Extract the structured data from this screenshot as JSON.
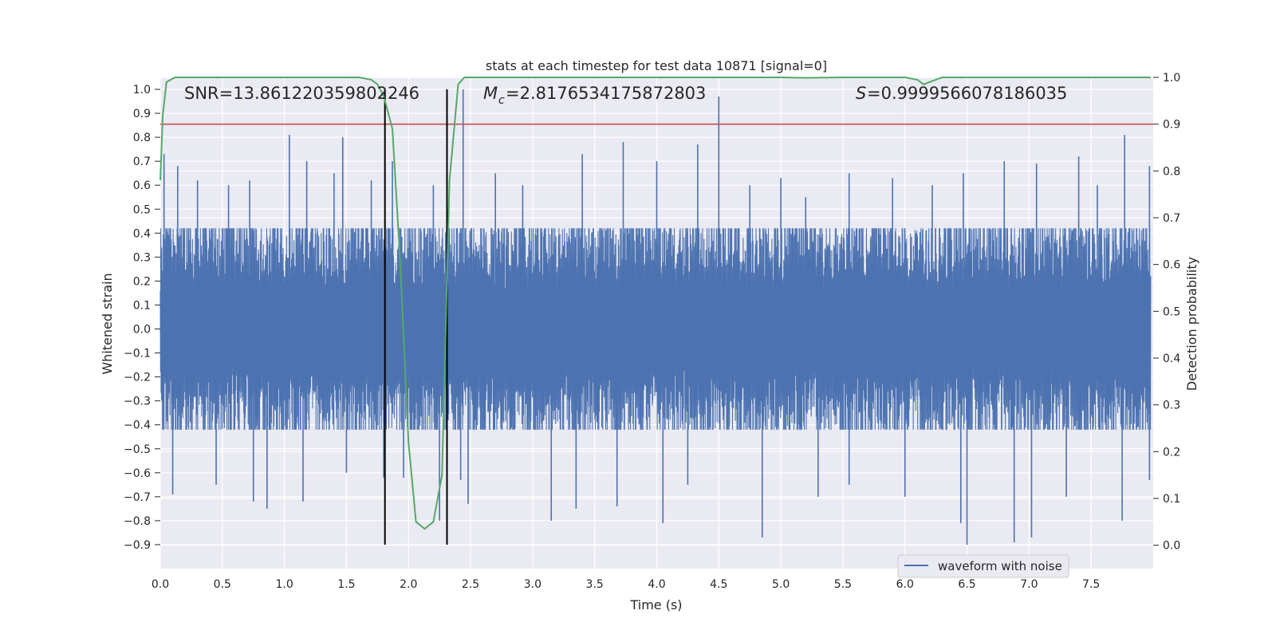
{
  "chart_data": {
    "type": "line",
    "title": "stats at each timestep for test data 10871 [signal=0]",
    "xlabel": "Time (s)",
    "ylabel_left": "Whitened strain",
    "ylabel_right": "Detection probability",
    "xlim": [
      0.0,
      8.0
    ],
    "ylim_left": [
      -1.0,
      1.05
    ],
    "ylim_right": [
      -0.05,
      1.0
    ],
    "x_ticks": [
      0.0,
      0.5,
      1.0,
      1.5,
      2.0,
      2.5,
      3.0,
      3.5,
      4.0,
      4.5,
      5.0,
      5.5,
      6.0,
      6.5,
      7.0,
      7.5
    ],
    "y_ticks_left": [
      1.0,
      0.9,
      0.8,
      0.7,
      0.6,
      0.5,
      0.4,
      0.3,
      0.2,
      0.1,
      0.0,
      -0.1,
      -0.2,
      -0.3,
      -0.4,
      -0.5,
      -0.6,
      -0.7,
      -0.8,
      -0.9
    ],
    "y_ticks_right": [
      1.0,
      0.9,
      0.8,
      0.7,
      0.6,
      0.5,
      0.4,
      0.3,
      0.2,
      0.1,
      0.0
    ],
    "grid": true,
    "legend": {
      "position": "lower-right",
      "entries": [
        "waveform with noise"
      ]
    },
    "annotations": {
      "snr_text": "SNR=13.861220359802246",
      "mc_text": "=2.8176534175872803",
      "s_text": "=0.9999566078186035"
    },
    "threshold_right": 0.9,
    "vlines_x": [
      1.81,
      2.31
    ],
    "vlines_yrange_left": [
      -0.9,
      1.0
    ],
    "series": [
      {
        "name": "waveform with noise",
        "axis": "left",
        "color": "#4c72b0",
        "style": "dense noise trace, bulk approx ±0.30, envelope peaks from spikes",
        "spikes_up": [
          [
            0.03,
            0.73
          ],
          [
            0.14,
            0.68
          ],
          [
            0.3,
            0.62
          ],
          [
            0.55,
            0.6
          ],
          [
            0.72,
            0.62
          ],
          [
            1.04,
            0.81
          ],
          [
            1.18,
            0.7
          ],
          [
            1.4,
            0.65
          ],
          [
            1.47,
            0.8
          ],
          [
            1.7,
            0.62
          ],
          [
            1.87,
            0.7
          ],
          [
            2.2,
            0.6
          ],
          [
            2.44,
            1.0
          ],
          [
            2.7,
            0.65
          ],
          [
            2.92,
            0.6
          ],
          [
            3.4,
            0.73
          ],
          [
            3.73,
            0.78
          ],
          [
            4.0,
            0.7
          ],
          [
            4.33,
            0.77
          ],
          [
            4.5,
            0.97
          ],
          [
            4.75,
            0.6
          ],
          [
            5.0,
            0.63
          ],
          [
            5.2,
            0.55
          ],
          [
            5.55,
            0.65
          ],
          [
            5.9,
            0.63
          ],
          [
            6.22,
            0.6
          ],
          [
            6.47,
            0.65
          ],
          [
            6.8,
            0.7
          ],
          [
            7.06,
            0.69
          ],
          [
            7.4,
            0.72
          ],
          [
            7.55,
            0.6
          ],
          [
            7.77,
            0.81
          ],
          [
            7.97,
            0.68
          ]
        ],
        "spikes_down": [
          [
            0.1,
            -0.69
          ],
          [
            0.45,
            -0.65
          ],
          [
            0.75,
            -0.72
          ],
          [
            0.86,
            -0.75
          ],
          [
            1.15,
            -0.72
          ],
          [
            1.5,
            -0.6
          ],
          [
            1.8,
            -0.62
          ],
          [
            1.96,
            -0.62
          ],
          [
            2.25,
            -0.8
          ],
          [
            2.42,
            -0.63
          ],
          [
            2.48,
            -0.73
          ],
          [
            3.15,
            -0.8
          ],
          [
            3.35,
            -0.75
          ],
          [
            3.68,
            -0.74
          ],
          [
            4.05,
            -0.81
          ],
          [
            4.25,
            -0.65
          ],
          [
            4.85,
            -0.87
          ],
          [
            5.3,
            -0.7
          ],
          [
            5.55,
            -0.65
          ],
          [
            6.0,
            -0.7
          ],
          [
            6.45,
            -0.81
          ],
          [
            6.5,
            -0.9
          ],
          [
            6.88,
            -0.89
          ],
          [
            7.02,
            -0.87
          ],
          [
            7.3,
            -0.7
          ],
          [
            7.75,
            -0.8
          ],
          [
            7.97,
            -0.63
          ]
        ]
      },
      {
        "name": "",
        "axis": "right",
        "color": "#55a868",
        "x": [
          0.0,
          0.02,
          0.05,
          0.12,
          0.4,
          0.8,
          1.2,
          1.5,
          1.6,
          1.7,
          1.75,
          1.8,
          1.87,
          1.93,
          2.0,
          2.06,
          2.13,
          2.2,
          2.27,
          2.33,
          2.4,
          2.45,
          2.6,
          3.0,
          4.0,
          5.0,
          5.2,
          5.5,
          6.0,
          6.1,
          6.15,
          6.2,
          6.3,
          6.5,
          7.0,
          7.5,
          7.98
        ],
        "y": [
          0.78,
          0.92,
          0.99,
          1.0,
          1.0,
          1.0,
          1.0,
          1.0,
          1.0,
          0.995,
          0.985,
          0.96,
          0.89,
          0.62,
          0.22,
          0.05,
          0.035,
          0.05,
          0.15,
          0.78,
          0.985,
          1.0,
          1.0,
          1.0,
          1.0,
          1.0,
          0.999,
          1.0,
          1.0,
          0.995,
          0.985,
          0.99,
          1.0,
          1.0,
          1.0,
          1.0,
          1.0
        ]
      }
    ]
  }
}
